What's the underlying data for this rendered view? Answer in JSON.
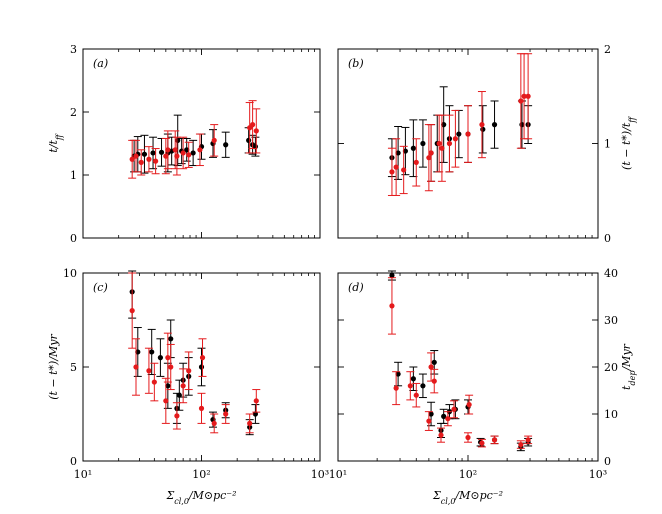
{
  "colors": {
    "series_a": "#000000",
    "series_b": "#e41a1c"
  },
  "chart_data": [
    {
      "panel": "a",
      "type": "scatter",
      "title": "(a)",
      "xlabel": "",
      "ylabel": "t/t_ff",
      "yaxis_side": "left",
      "xscale": "log",
      "xlim": [
        10,
        1000
      ],
      "ylim": [
        0,
        3
      ],
      "xticks": [
        10,
        100,
        1000
      ],
      "xtick_labels": [
        "",
        "",
        ""
      ],
      "yticks": [
        0,
        1,
        2,
        3
      ],
      "ytick_labels": [
        "0",
        "1",
        "2",
        "3"
      ],
      "series": [
        {
          "name": "black",
          "color": "#000000",
          "points": [
            {
              "x": 27,
              "y": 1.3,
              "err": 0.25
            },
            {
              "x": 29,
              "y": 1.33,
              "err": 0.28
            },
            {
              "x": 33,
              "y": 1.33,
              "err": 0.3
            },
            {
              "x": 39,
              "y": 1.35,
              "err": 0.25
            },
            {
              "x": 46,
              "y": 1.36,
              "err": 0.22
            },
            {
              "x": 52,
              "y": 1.35,
              "err": 0.3
            },
            {
              "x": 56,
              "y": 1.38,
              "err": 0.22
            },
            {
              "x": 63,
              "y": 1.55,
              "err": 0.4
            },
            {
              "x": 68,
              "y": 1.38,
              "err": 0.2
            },
            {
              "x": 75,
              "y": 1.4,
              "err": 0.18
            },
            {
              "x": 85,
              "y": 1.35,
              "err": 0.2
            },
            {
              "x": 100,
              "y": 1.45,
              "err": 0.2
            },
            {
              "x": 125,
              "y": 1.5,
              "err": 0.22
            },
            {
              "x": 160,
              "y": 1.48,
              "err": 0.2
            },
            {
              "x": 250,
              "y": 1.55,
              "err": 0.2
            },
            {
              "x": 270,
              "y": 1.48,
              "err": 0.15
            },
            {
              "x": 285,
              "y": 1.45,
              "err": 0.15
            }
          ]
        },
        {
          "name": "red",
          "color": "#e41a1c",
          "points": [
            {
              "x": 26,
              "y": 1.25,
              "err": 0.3
            },
            {
              "x": 28,
              "y": 1.3,
              "err": 0.25
            },
            {
              "x": 31,
              "y": 1.2,
              "err": 0.2
            },
            {
              "x": 36,
              "y": 1.25,
              "err": 0.2
            },
            {
              "x": 41,
              "y": 1.22,
              "err": 0.2
            },
            {
              "x": 50,
              "y": 1.3,
              "err": 0.28
            },
            {
              "x": 52,
              "y": 1.4,
              "err": 0.3
            },
            {
              "x": 60,
              "y": 1.4,
              "err": 0.3
            },
            {
              "x": 62,
              "y": 1.3,
              "err": 0.3
            },
            {
              "x": 70,
              "y": 1.35,
              "err": 0.25
            },
            {
              "x": 78,
              "y": 1.32,
              "err": 0.2
            },
            {
              "x": 97,
              "y": 1.4,
              "err": 0.25
            },
            {
              "x": 128,
              "y": 1.55,
              "err": 0.25
            },
            {
              "x": 255,
              "y": 1.75,
              "err": 0.4
            },
            {
              "x": 270,
              "y": 1.8,
              "err": 0.38
            },
            {
              "x": 290,
              "y": 1.7,
              "err": 0.35
            }
          ]
        }
      ]
    },
    {
      "panel": "b",
      "type": "scatter",
      "title": "(b)",
      "xlabel": "",
      "ylabel": "(t − t*)/t_ff",
      "yaxis_side": "right",
      "xscale": "log",
      "xlim": [
        10,
        1000
      ],
      "ylim": [
        0,
        2
      ],
      "xticks": [
        10,
        100,
        1000
      ],
      "xtick_labels": [
        "",
        "",
        ""
      ],
      "yticks": [
        0,
        1,
        2
      ],
      "ytick_labels": [
        "0",
        "1",
        "2"
      ],
      "series": [
        {
          "name": "black",
          "color": "#000000",
          "points": [
            {
              "x": 26,
              "y": 0.85,
              "err": 0.2
            },
            {
              "x": 29,
              "y": 0.9,
              "err": 0.28
            },
            {
              "x": 33,
              "y": 0.92,
              "err": 0.25
            },
            {
              "x": 38,
              "y": 0.95,
              "err": 0.3
            },
            {
              "x": 45,
              "y": 1.0,
              "err": 0.25
            },
            {
              "x": 52,
              "y": 0.9,
              "err": 0.3
            },
            {
              "x": 58,
              "y": 1.0,
              "err": 0.3
            },
            {
              "x": 65,
              "y": 1.2,
              "err": 0.4
            },
            {
              "x": 72,
              "y": 1.05,
              "err": 0.35
            },
            {
              "x": 85,
              "y": 1.1,
              "err": 0.25
            },
            {
              "x": 100,
              "y": 1.1,
              "err": 0.3
            },
            {
              "x": 130,
              "y": 1.15,
              "err": 0.25
            },
            {
              "x": 160,
              "y": 1.2,
              "err": 0.25
            },
            {
              "x": 260,
              "y": 1.2,
              "err": 0.25
            },
            {
              "x": 290,
              "y": 1.2,
              "err": 0.2
            }
          ]
        },
        {
          "name": "red",
          "color": "#e41a1c",
          "points": [
            {
              "x": 26,
              "y": 0.7,
              "err": 0.25
            },
            {
              "x": 28,
              "y": 0.75,
              "err": 0.3
            },
            {
              "x": 32,
              "y": 0.72,
              "err": 0.25
            },
            {
              "x": 40,
              "y": 0.8,
              "err": 0.25
            },
            {
              "x": 50,
              "y": 0.85,
              "err": 0.35
            },
            {
              "x": 52,
              "y": 0.9,
              "err": 0.3
            },
            {
              "x": 60,
              "y": 1.0,
              "err": 0.3
            },
            {
              "x": 63,
              "y": 0.95,
              "err": 0.35
            },
            {
              "x": 72,
              "y": 1.0,
              "err": 0.3
            },
            {
              "x": 80,
              "y": 1.05,
              "err": 0.3
            },
            {
              "x": 100,
              "y": 1.1,
              "err": 0.3
            },
            {
              "x": 128,
              "y": 1.2,
              "err": 0.35
            },
            {
              "x": 255,
              "y": 1.45,
              "err": 0.5
            },
            {
              "x": 270,
              "y": 1.5,
              "err": 0.45
            },
            {
              "x": 290,
              "y": 1.5,
              "err": 0.45
            }
          ]
        }
      ]
    },
    {
      "panel": "c",
      "type": "scatter",
      "title": "(c)",
      "xlabel": "Σ_cl,0/M⊙pc⁻²",
      "ylabel": "(t − t*)/Myr",
      "yaxis_side": "left",
      "xscale": "log",
      "xlim": [
        10,
        1000
      ],
      "ylim": [
        0,
        10
      ],
      "xticks": [
        10,
        100,
        1000
      ],
      "xtick_labels": [
        "10¹",
        "10²",
        "10³"
      ],
      "yticks": [
        0,
        5,
        10
      ],
      "ytick_labels": [
        "0",
        "5",
        "10"
      ],
      "series": [
        {
          "name": "black",
          "color": "#000000",
          "points": [
            {
              "x": 26,
              "y": 9.0,
              "err": 1.4
            },
            {
              "x": 29,
              "y": 5.8,
              "err": 1.3
            },
            {
              "x": 38,
              "y": 5.8,
              "err": 1.2
            },
            {
              "x": 45,
              "y": 5.5,
              "err": 1.0
            },
            {
              "x": 52,
              "y": 4.0,
              "err": 1.2
            },
            {
              "x": 55,
              "y": 6.5,
              "err": 1.0
            },
            {
              "x": 62,
              "y": 2.8,
              "err": 0.8
            },
            {
              "x": 65,
              "y": 3.5,
              "err": 0.8
            },
            {
              "x": 70,
              "y": 4.3,
              "err": 0.9
            },
            {
              "x": 78,
              "y": 4.5,
              "err": 1.0
            },
            {
              "x": 100,
              "y": 5.0,
              "err": 1.0
            },
            {
              "x": 125,
              "y": 2.2,
              "err": 0.4
            },
            {
              "x": 160,
              "y": 2.7,
              "err": 0.4
            },
            {
              "x": 255,
              "y": 1.8,
              "err": 0.4
            },
            {
              "x": 285,
              "y": 2.5,
              "err": 0.5
            }
          ]
        },
        {
          "name": "red",
          "color": "#e41a1c",
          "points": [
            {
              "x": 26,
              "y": 8.0,
              "err": 2.0
            },
            {
              "x": 28,
              "y": 5.0,
              "err": 1.5
            },
            {
              "x": 36,
              "y": 4.8,
              "err": 1.2
            },
            {
              "x": 40,
              "y": 4.2,
              "err": 1.0
            },
            {
              "x": 50,
              "y": 3.2,
              "err": 1.2
            },
            {
              "x": 52,
              "y": 5.5,
              "err": 1.3
            },
            {
              "x": 55,
              "y": 5.0,
              "err": 1.2
            },
            {
              "x": 62,
              "y": 2.4,
              "err": 0.7
            },
            {
              "x": 70,
              "y": 4.0,
              "err": 0.9
            },
            {
              "x": 78,
              "y": 4.8,
              "err": 1.0
            },
            {
              "x": 100,
              "y": 2.8,
              "err": 0.8
            },
            {
              "x": 102,
              "y": 5.5,
              "err": 1.0
            },
            {
              "x": 128,
              "y": 2.0,
              "err": 0.5
            },
            {
              "x": 160,
              "y": 2.5,
              "err": 0.5
            },
            {
              "x": 255,
              "y": 2.0,
              "err": 0.5
            },
            {
              "x": 290,
              "y": 3.2,
              "err": 0.6
            }
          ]
        }
      ]
    },
    {
      "panel": "d",
      "type": "scatter",
      "title": "(d)",
      "xlabel": "Σ_cl,0/M⊙pc⁻²",
      "ylabel": "t_dep/Myr",
      "yaxis_side": "right",
      "xscale": "log",
      "xlim": [
        10,
        1000
      ],
      "ylim": [
        0,
        40
      ],
      "xticks": [
        10,
        100,
        1000
      ],
      "xtick_labels": [
        "10¹",
        "10²",
        "10³"
      ],
      "yticks": [
        0,
        10,
        20,
        30,
        40
      ],
      "ytick_labels": [
        "0",
        "10",
        "20",
        "30",
        "40"
      ],
      "series": [
        {
          "name": "black",
          "color": "#000000",
          "points": [
            {
              "x": 26,
              "y": 39.5,
              "err": 1.0
            },
            {
              "x": 29,
              "y": 18.5,
              "err": 2.5
            },
            {
              "x": 38,
              "y": 17.5,
              "err": 2.5
            },
            {
              "x": 45,
              "y": 16.0,
              "err": 2.5
            },
            {
              "x": 52,
              "y": 10.0,
              "err": 2.5
            },
            {
              "x": 55,
              "y": 21.0,
              "err": 2.5
            },
            {
              "x": 62,
              "y": 6.5,
              "err": 1.5
            },
            {
              "x": 65,
              "y": 9.5,
              "err": 1.5
            },
            {
              "x": 72,
              "y": 10.5,
              "err": 1.5
            },
            {
              "x": 80,
              "y": 11.0,
              "err": 2.0
            },
            {
              "x": 100,
              "y": 11.5,
              "err": 1.5
            },
            {
              "x": 125,
              "y": 4.0,
              "err": 0.8
            },
            {
              "x": 160,
              "y": 4.5,
              "err": 0.8
            },
            {
              "x": 255,
              "y": 3.0,
              "err": 0.8
            },
            {
              "x": 290,
              "y": 4.0,
              "err": 0.8
            }
          ]
        },
        {
          "name": "red",
          "color": "#e41a1c",
          "points": [
            {
              "x": 26,
              "y": 33.0,
              "err": 6.0
            },
            {
              "x": 28,
              "y": 15.5,
              "err": 3.5
            },
            {
              "x": 36,
              "y": 16.0,
              "err": 3.0
            },
            {
              "x": 40,
              "y": 14.0,
              "err": 2.5
            },
            {
              "x": 50,
              "y": 8.5,
              "err": 2.0
            },
            {
              "x": 52,
              "y": 20.0,
              "err": 3.0
            },
            {
              "x": 55,
              "y": 17.0,
              "err": 2.5
            },
            {
              "x": 62,
              "y": 5.5,
              "err": 1.5
            },
            {
              "x": 70,
              "y": 9.0,
              "err": 1.5
            },
            {
              "x": 78,
              "y": 11.0,
              "err": 1.8
            },
            {
              "x": 100,
              "y": 5.0,
              "err": 1.0
            },
            {
              "x": 102,
              "y": 12.0,
              "err": 2.0
            },
            {
              "x": 128,
              "y": 3.8,
              "err": 0.8
            },
            {
              "x": 160,
              "y": 4.5,
              "err": 0.8
            },
            {
              "x": 255,
              "y": 3.5,
              "err": 0.8
            },
            {
              "x": 290,
              "y": 4.5,
              "err": 0.8
            }
          ]
        }
      ]
    }
  ]
}
